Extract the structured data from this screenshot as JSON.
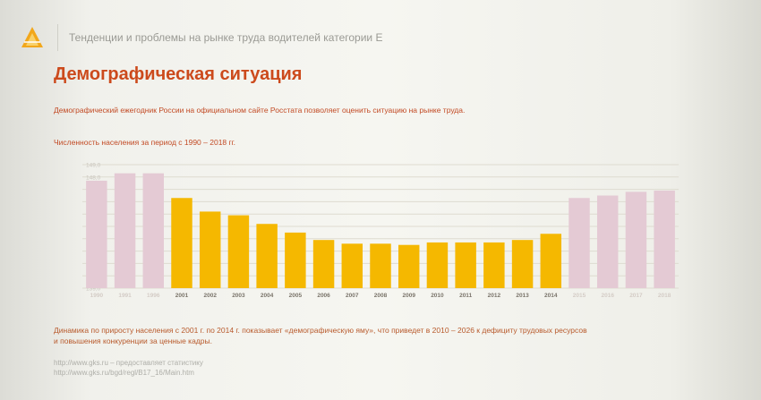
{
  "header": {
    "title": "Тенденции и проблемы на рынке труда водителей категории Е"
  },
  "slide_title": "Демографическая ситуация",
  "intro_text": "Демографический ежегодник России на официальном сайте Росстата позволяет оценить ситуацию на рынке труда.",
  "chart_data": {
    "type": "bar",
    "title": "Численность населения за период с 1990 – 2018 гг.",
    "categories": [
      "1990",
      "1991",
      "1996",
      "2001",
      "2002",
      "2003",
      "2004",
      "2005",
      "2006",
      "2007",
      "2008",
      "2009",
      "2010",
      "2011",
      "2012",
      "2013",
      "2014",
      "2015",
      "2016",
      "2017",
      "2018"
    ],
    "values": [
      147.7,
      148.3,
      148.3,
      146.3,
      145.2,
      144.9,
      144.2,
      143.5,
      142.9,
      142.6,
      142.6,
      142.5,
      142.7,
      142.7,
      142.7,
      142.9,
      143.4,
      146.3,
      146.5,
      146.8,
      146.9
    ],
    "highlighted": [
      false,
      false,
      false,
      true,
      true,
      true,
      true,
      true,
      true,
      true,
      true,
      true,
      true,
      true,
      true,
      true,
      true,
      false,
      false,
      false,
      false
    ],
    "ylim": [
      139.0,
      149.0
    ],
    "yticks": [
      "139,0",
      "140,0",
      "141,0",
      "142,0",
      "143,0",
      "144,0",
      "145,0",
      "146,0",
      "147,0",
      "148,0",
      "149,0"
    ],
    "grid": true,
    "colors": {
      "highlight": "#f5b800",
      "muted": "#e4cad4",
      "grid": "#dedbd0"
    }
  },
  "conclusion_text": "Динамика по приросту населения с 2001 г. по 2014 г. показывает «демографическую яму», что приведет в 2010 – 2026 к дефициту трудовых ресурсов и повышения конкуренции за ценные кадры.",
  "links": [
    "http://www.gks.ru – предоставляет статистику",
    "http://www.gks.ru/bgd/regl/B17_16/Main.htm"
  ]
}
